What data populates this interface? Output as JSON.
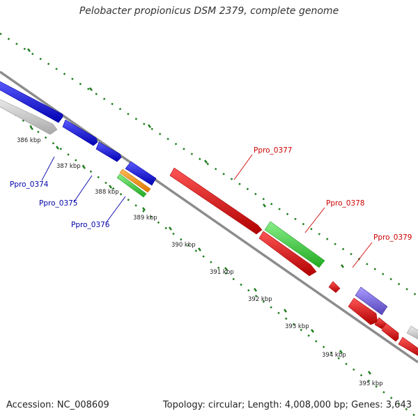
{
  "title": "Pelobacter propionicus DSM 2379, complete genome",
  "footer": {
    "accession": "Accession: NC_008609",
    "summary": "Topology: circular; Length: 4,008,000 bp; Genes: 3,643"
  },
  "tick_labels": [
    "386 kbp",
    "387 kbp",
    "388 kbp",
    "389 kbp",
    "390 kbp",
    "391 kbp",
    "392 kbp",
    "393 kbp",
    "394 kbp",
    "395 kbp"
  ],
  "gene_labels": {
    "left": [
      "Ppro_0374",
      "Ppro_0375",
      "Ppro_0376"
    ],
    "right": [
      "Ppro_0377",
      "Ppro_0378",
      "Ppro_0379"
    ]
  },
  "colors": {
    "backbone": "#8c8c8c",
    "dots": "#1e7d1e",
    "gene_blue": "#0000dd",
    "gene_red": "#e00000",
    "gene_green": "#33cc33",
    "gene_orange": "#ff8800",
    "gene_grey": "#c8c8c8",
    "gene_purple": "#7766dd",
    "label_blue": "#0000aa",
    "label_red": "#cc0000"
  }
}
